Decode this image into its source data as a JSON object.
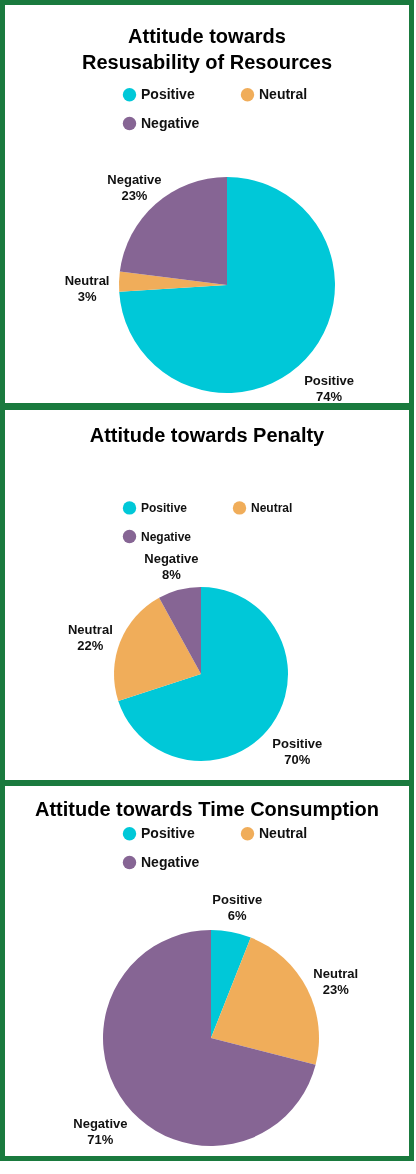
{
  "chart_data": [
    {
      "type": "pie",
      "title": "Attitude towards Resusability of Resources",
      "categories": [
        "Positive",
        "Neutral",
        "Negative"
      ],
      "values": [
        74,
        3,
        23
      ],
      "colors": [
        "#00c8d8",
        "#f0ad5a",
        "#866594"
      ],
      "value_labels": [
        "74%",
        "3%",
        "23%"
      ],
      "legend": "top"
    },
    {
      "type": "pie",
      "title": "Attitude towards Penalty",
      "categories": [
        "Positive",
        "Neutral",
        "Negative"
      ],
      "values": [
        70,
        22,
        8
      ],
      "colors": [
        "#00c8d8",
        "#f0ad5a",
        "#866594"
      ],
      "value_labels": [
        "70%",
        "22%",
        "8%"
      ],
      "legend": "top"
    },
    {
      "type": "pie",
      "title": "Attitude towards Time Consumption",
      "categories": [
        "Positive",
        "Neutral",
        "Negative"
      ],
      "values": [
        6,
        23,
        71
      ],
      "colors": [
        "#00c8d8",
        "#f0ad5a",
        "#866594"
      ],
      "value_labels": [
        "6%",
        "23%",
        "71%"
      ],
      "legend": "top"
    }
  ]
}
